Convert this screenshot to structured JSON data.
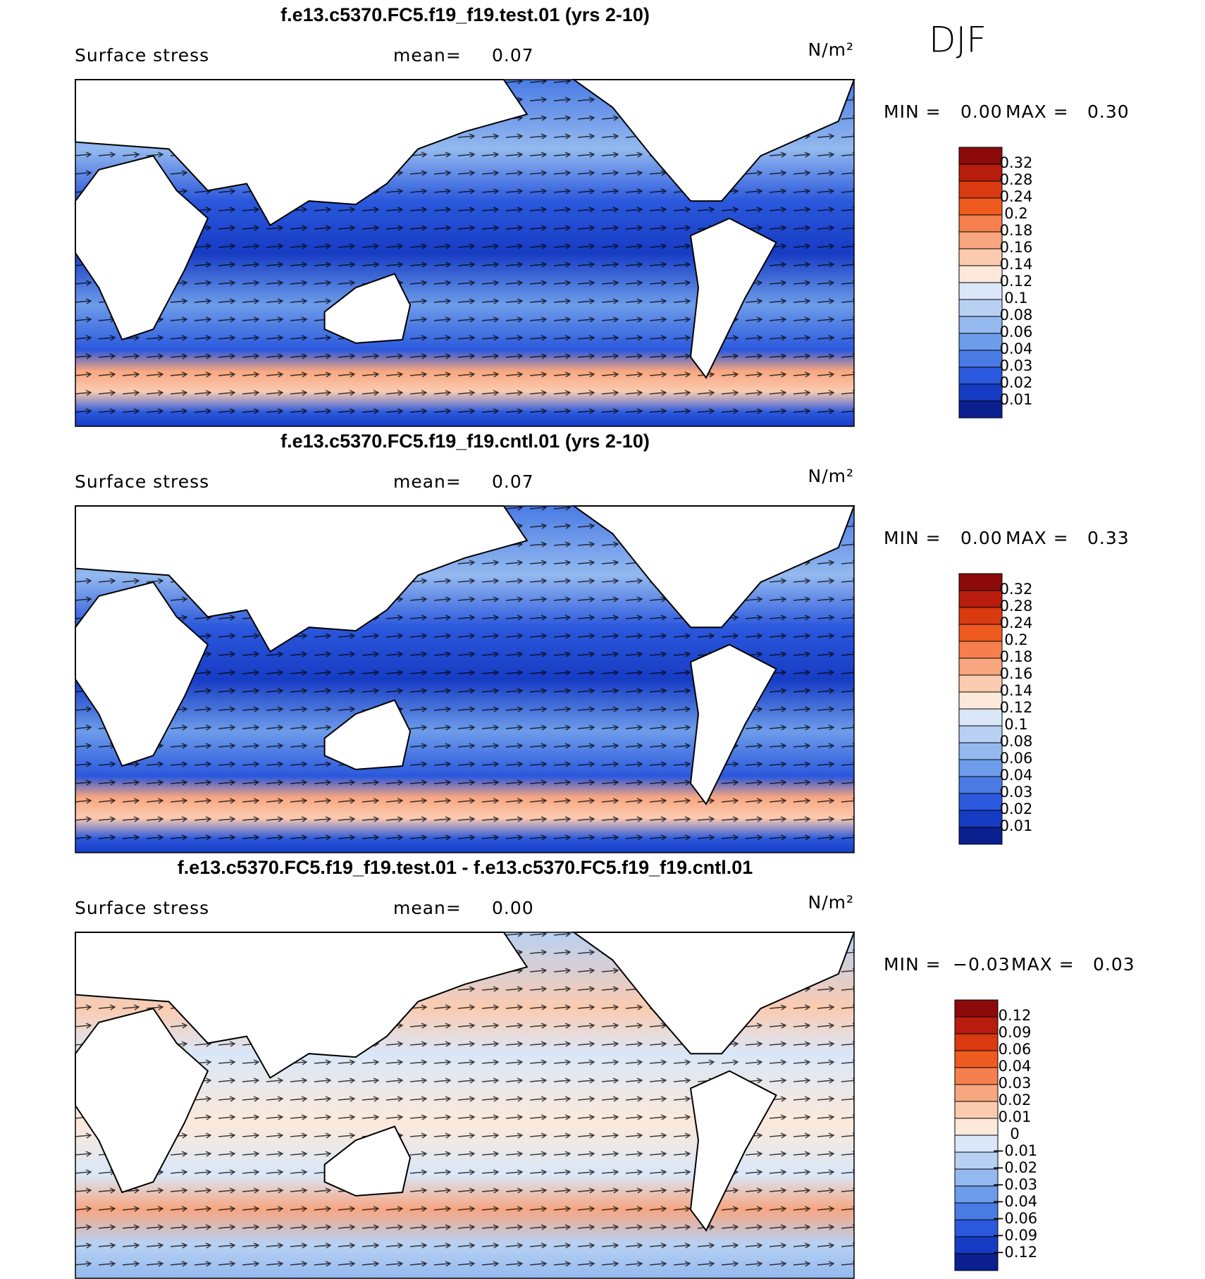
{
  "header": {
    "season": "DJF"
  },
  "panels": [
    {
      "title": "f.e13.c5370.FC5.f19_f19.test.01 (yrs 2-10)",
      "field_label": "Surface stress",
      "mean_label": "mean=",
      "mean_value": "0.07",
      "units": "N/m²",
      "min_label": "MIN =",
      "min_value": "0.00",
      "max_label": "MAX =",
      "max_value": "0.30",
      "colorbar": {
        "labels": [
          "0.32",
          "0.28",
          "0.24",
          "0.2",
          "0.18",
          "0.16",
          "0.14",
          "0.12",
          "0.1",
          "0.08",
          "0.06",
          "0.04",
          "0.03",
          "0.02",
          "0.01"
        ],
        "colors": [
          "#8c0a0a",
          "#b71c0c",
          "#d93a10",
          "#ef5a1e",
          "#f5804d",
          "#f7a680",
          "#fbcbb0",
          "#fde9da",
          "#d9e7f8",
          "#b8d1f3",
          "#94b9ef",
          "#6d9cea",
          "#4a7be5",
          "#2b58dc",
          "#173cc4",
          "#0b1f8f"
        ]
      }
    },
    {
      "title": "f.e13.c5370.FC5.f19_f19.cntl.01 (yrs 2-10)",
      "field_label": "Surface stress",
      "mean_label": "mean=",
      "mean_value": "0.07",
      "units": "N/m²",
      "min_label": "MIN =",
      "min_value": "0.00",
      "max_label": "MAX =",
      "max_value": "0.33",
      "colorbar": {
        "labels": [
          "0.32",
          "0.28",
          "0.24",
          "0.2",
          "0.18",
          "0.16",
          "0.14",
          "0.12",
          "0.1",
          "0.08",
          "0.06",
          "0.04",
          "0.03",
          "0.02",
          "0.01"
        ],
        "colors": [
          "#8c0a0a",
          "#b71c0c",
          "#d93a10",
          "#ef5a1e",
          "#f5804d",
          "#f7a680",
          "#fbcbb0",
          "#fde9da",
          "#d9e7f8",
          "#b8d1f3",
          "#94b9ef",
          "#6d9cea",
          "#4a7be5",
          "#2b58dc",
          "#173cc4",
          "#0b1f8f"
        ]
      }
    },
    {
      "title": "f.e13.c5370.FC5.f19_f19.test.01 - f.e13.c5370.FC5.f19_f19.cntl.01",
      "field_label": "Surface stress",
      "mean_label": "mean=",
      "mean_value": "0.00",
      "units": "N/m²",
      "min_label": "MIN =",
      "min_value": "−0.03",
      "max_label": "MAX =",
      "max_value": "0.03",
      "colorbar": {
        "labels": [
          "0.12",
          "0.09",
          "0.06",
          "0.04",
          "0.03",
          "0.02",
          "0.01",
          "0",
          "−0.01",
          "−0.02",
          "−0.03",
          "−0.04",
          "−0.06",
          "−0.09",
          "−0.12"
        ],
        "colors": [
          "#8c0a0a",
          "#b71c0c",
          "#d93a10",
          "#ef5a1e",
          "#f5804d",
          "#f7a680",
          "#fbcbb0",
          "#fde9da",
          "#d9e7f8",
          "#b8d1f3",
          "#94b9ef",
          "#6d9cea",
          "#4a7be5",
          "#2b58dc",
          "#173cc4",
          "#0b1f8f"
        ]
      }
    }
  ]
}
